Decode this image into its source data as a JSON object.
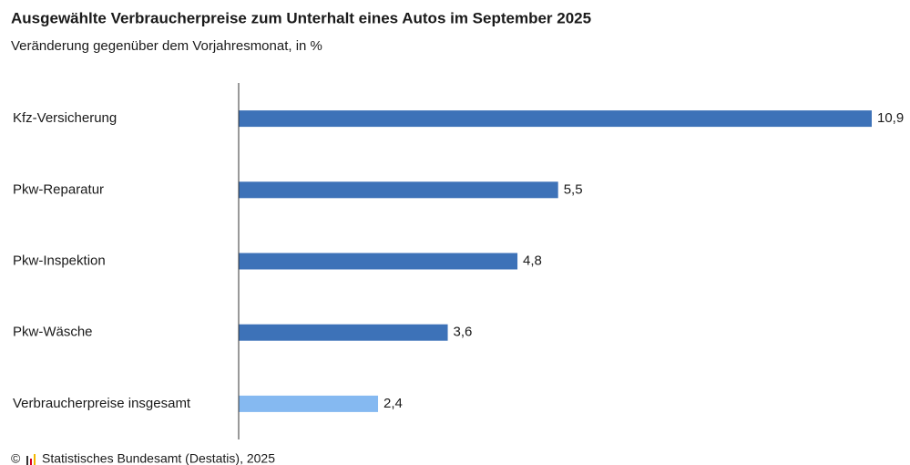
{
  "chart_data": {
    "type": "bar",
    "orientation": "horizontal",
    "title": "Ausgewählte Verbraucherpreise zum Unterhalt eines Autos im September 2025",
    "subtitle": "Veränderung gegenüber dem Vorjahresmonat, in %",
    "categories": [
      "Kfz-Versicherung",
      "Pkw-Reparatur",
      "Pkw-Inspektion",
      "Pkw-Wäsche",
      "Verbraucherpreise insgesamt"
    ],
    "values": [
      10.9,
      5.5,
      4.8,
      3.6,
      2.4
    ],
    "value_labels": [
      "10,9",
      "5,5",
      "4,8",
      "3,6",
      "2,4"
    ],
    "colors": [
      "#3d72b8",
      "#3d72b8",
      "#3d72b8",
      "#3d72b8",
      "#85b9f1"
    ],
    "xlim": [
      0,
      10.9
    ],
    "copyright": "©",
    "source": "Statistisches Bundesamt (Destatis), 2025"
  }
}
